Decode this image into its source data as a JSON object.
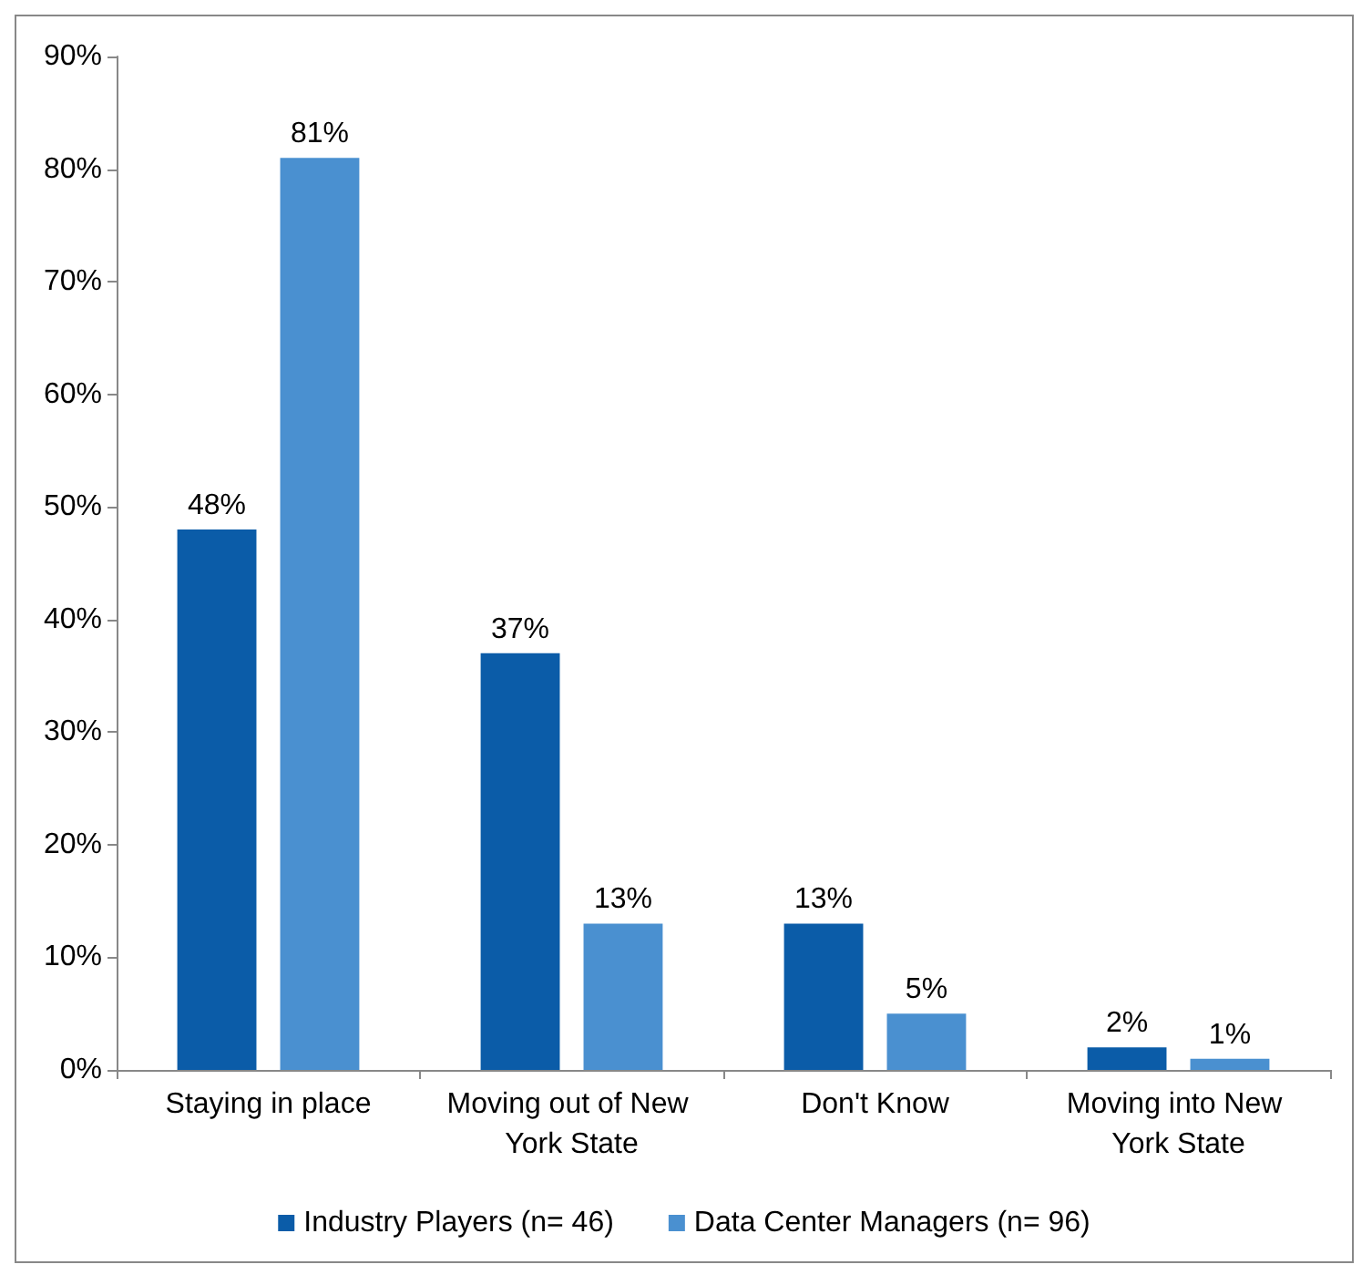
{
  "chart_data": {
    "type": "bar",
    "categories": [
      "Staying in place",
      "Moving out of New York State",
      "Don't Know",
      "Moving into New York State"
    ],
    "series": [
      {
        "name": "Industry Players (n= 46)",
        "color": "#0b5ca8",
        "values": [
          48,
          37,
          13,
          2
        ],
        "value_labels": [
          "48%",
          "37%",
          "13%",
          "2%"
        ]
      },
      {
        "name": "Data Center Managers (n= 96)",
        "color": "#4a90d0",
        "values": [
          81,
          13,
          5,
          1
        ],
        "value_labels": [
          "81%",
          "13%",
          "5%",
          "1%"
        ]
      }
    ],
    "ylim": [
      0,
      90
    ],
    "yticks": [
      {
        "value": 0,
        "label": "0%"
      },
      {
        "value": 10,
        "label": "10%"
      },
      {
        "value": 20,
        "label": "20%"
      },
      {
        "value": 30,
        "label": "30%"
      },
      {
        "value": 40,
        "label": "40%"
      },
      {
        "value": 50,
        "label": "50%"
      },
      {
        "value": 60,
        "label": "60%"
      },
      {
        "value": 70,
        "label": "70%"
      },
      {
        "value": 80,
        "label": "80%"
      },
      {
        "value": 90,
        "label": "90%"
      }
    ],
    "grid": false,
    "legend": "bottom"
  }
}
